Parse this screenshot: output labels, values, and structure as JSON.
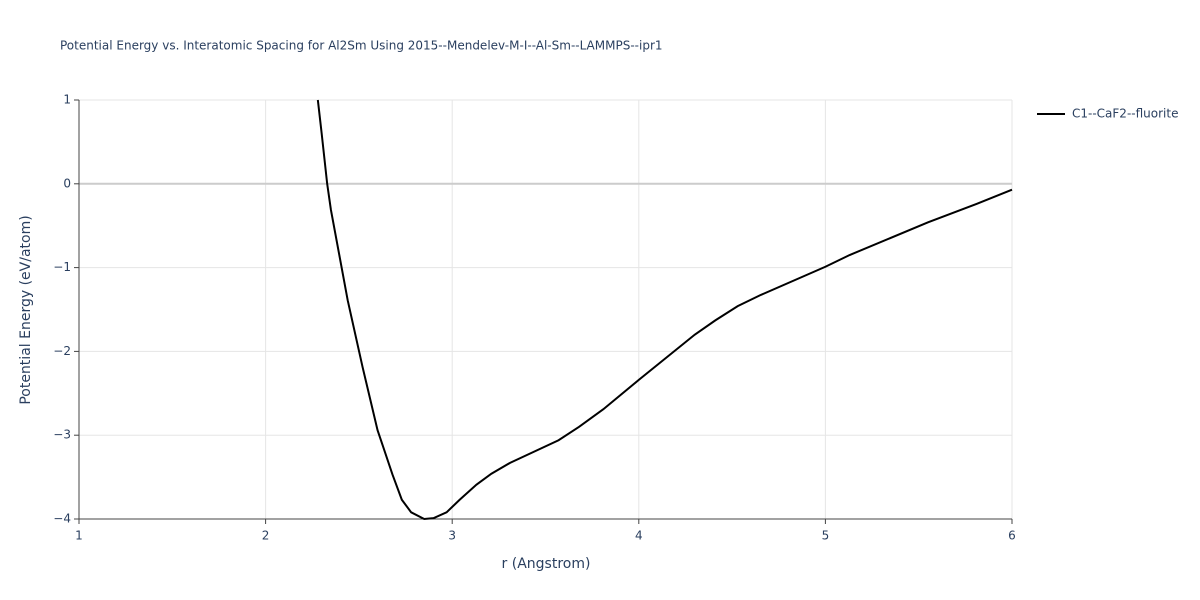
{
  "chart_data": {
    "type": "line",
    "title": "Potential Energy vs. Interatomic Spacing for Al2Sm Using 2015--Mendelev-M-I--Al-Sm--LAMMPS--ipr1",
    "x_label": "r (Angstrom)",
    "y_label": "Potential Energy (eV/atom)",
    "xlim": [
      1,
      6
    ],
    "ylim": [
      -4,
      1
    ],
    "xticks": [
      1,
      2,
      3,
      4,
      5,
      6
    ],
    "yticks": [
      {
        "value": -4,
        "label": "−4"
      },
      {
        "value": -3,
        "label": "−3"
      },
      {
        "value": -2,
        "label": "−2"
      },
      {
        "value": -1,
        "label": "−1"
      },
      0,
      1
    ],
    "grid": true,
    "legend": "top-right",
    "series": [
      {
        "name": "C1--CaF2--fluorite",
        "color": "#000000",
        "x": [
          2.28,
          2.3,
          2.33,
          2.35,
          2.44,
          2.52,
          2.6,
          2.68,
          2.73,
          2.78,
          2.85,
          2.9,
          2.97,
          3.04,
          3.13,
          3.21,
          3.31,
          3.57,
          3.68,
          3.81,
          4.0,
          4.3,
          4.41,
          4.53,
          4.65,
          5.0,
          5.13,
          5.55,
          5.81,
          6.0
        ],
        "values": [
          1.0,
          0.61,
          0.0,
          -0.31,
          -1.39,
          -2.19,
          -2.94,
          -3.47,
          -3.77,
          -3.92,
          -4.0,
          -3.99,
          -3.92,
          -3.77,
          -3.59,
          -3.46,
          -3.33,
          -3.06,
          -2.9,
          -2.69,
          -2.34,
          -1.8,
          -1.63,
          -1.46,
          -1.33,
          -0.99,
          -0.85,
          -0.46,
          -0.24,
          -0.07
        ]
      }
    ]
  }
}
